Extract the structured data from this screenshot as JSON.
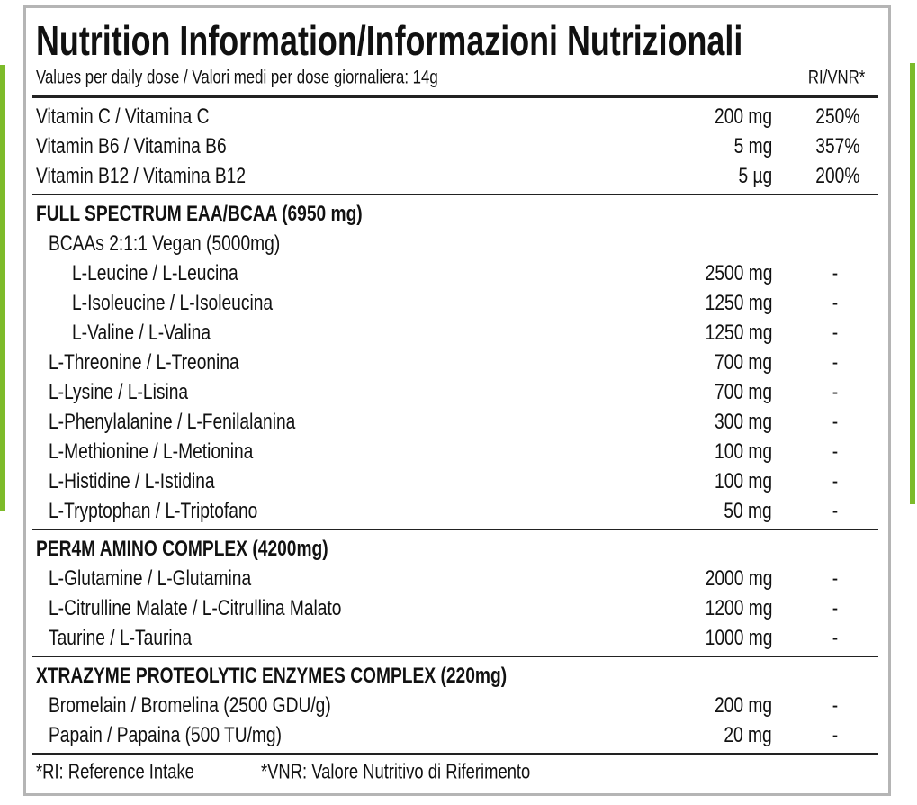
{
  "header": {
    "title": "Nutrition Information/Informazioni Nutrizionali",
    "subtitle": "Values per daily dose / Valori medi per dose giornaliera: 14g",
    "ri_header": "RI/VNR*"
  },
  "vitamins": [
    {
      "name": "Vitamin C / Vitamina C",
      "amount": "200 mg",
      "ri": "250%"
    },
    {
      "name": "Vitamin B6 / Vitamina B6",
      "amount": "5 mg",
      "ri": "357%"
    },
    {
      "name": "Vitamin B12 / Vitamina B12",
      "amount": "5 µg",
      "ri": "200%"
    }
  ],
  "sections": [
    {
      "title": "FULL SPECTRUM EAA/BCAA (6950 mg)",
      "rows": [
        {
          "name": "BCAAs 2:1:1 Vegan (5000mg)",
          "items": [
            {
              "name": "L-Leucine / L-Leucina",
              "amount": "2500 mg",
              "ri": "-"
            },
            {
              "name": "L-Isoleucine / L-Isoleucina",
              "amount": "1250 mg",
              "ri": "-"
            },
            {
              "name": "L-Valine / L-Valina",
              "amount": "1250 mg",
              "ri": "-"
            }
          ]
        },
        {
          "name": "L-Threonine / L-Treonina",
          "amount": "700 mg",
          "ri": "-"
        },
        {
          "name": "L-Lysine / L-Lisina",
          "amount": "700 mg",
          "ri": "-"
        },
        {
          "name": "L-Phenylalanine / L-Fenilalanina",
          "amount": "300 mg",
          "ri": "-"
        },
        {
          "name": "L-Methionine / L-Metionina",
          "amount": "100 mg",
          "ri": "-"
        },
        {
          "name": "L-Histidine / L-Istidina",
          "amount": "100 mg",
          "ri": "-"
        },
        {
          "name": "L-Tryptophan / L-Triptofano",
          "amount": "50 mg",
          "ri": "-"
        }
      ]
    },
    {
      "title": "PER4M AMINO COMPLEX (4200mg)",
      "rows": [
        {
          "name": "L-Glutamine / L-Glutamina",
          "amount": "2000 mg",
          "ri": "-"
        },
        {
          "name": "L-Citrulline Malate / L-Citrullina Malato",
          "amount": "1200 mg",
          "ri": "-"
        },
        {
          "name": "Taurine / L-Taurina",
          "amount": "1000 mg",
          "ri": "-"
        }
      ]
    },
    {
      "title": "XTRAZYME PROTEOLYTIC ENZYMES COMPLEX (220mg)",
      "rows": [
        {
          "name": "Bromelain / Bromelina (2500 GDU/g)",
          "amount": "200 mg",
          "ri": "-"
        },
        {
          "name": "Papain / Papaina (500 TU/mg)",
          "amount": "20 mg",
          "ri": "-"
        }
      ]
    }
  ],
  "footnotes": [
    "*RI: Reference Intake",
    "*VNR: Valore Nutritivo di Riferimento"
  ]
}
